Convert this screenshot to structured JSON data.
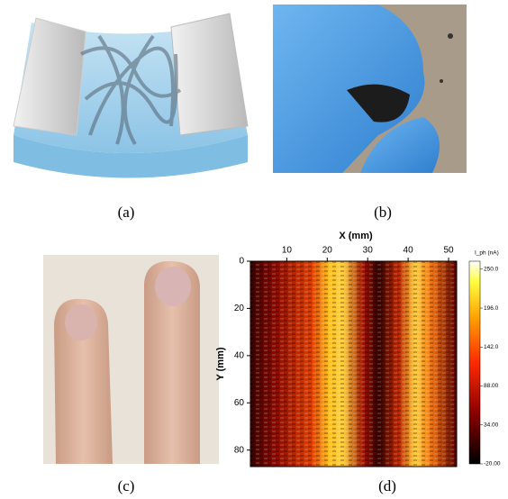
{
  "panels": [
    {
      "label": "(a)"
    },
    {
      "label": "(b)"
    },
    {
      "label": "(c)"
    },
    {
      "label": "(d)"
    }
  ],
  "heatmap": {
    "x_label": "X (mm)",
    "y_label": "Y (mm)",
    "colorbar_label": "I_ph (nA)",
    "xlim": [
      1,
      52
    ],
    "xticks": [
      10,
      20,
      30,
      40,
      50
    ],
    "ylim": [
      0,
      87
    ],
    "yticks": [
      0,
      20,
      40,
      60,
      80
    ],
    "clim": [
      -20,
      261
    ],
    "cticks": [
      {
        "value": 250,
        "label": "250.0"
      },
      {
        "value": 196,
        "label": "196.0"
      },
      {
        "value": 142,
        "label": "142.0"
      },
      {
        "value": 88,
        "label": "88.00"
      },
      {
        "value": 34,
        "label": "34.00"
      },
      {
        "value": -20,
        "label": "-20.00"
      }
    ]
  }
}
